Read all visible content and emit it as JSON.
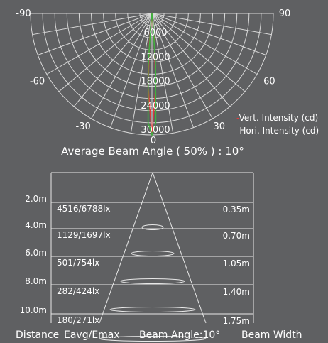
{
  "chart_data": [
    {
      "type": "polar",
      "angle_labels": [
        "-90",
        "-60",
        "-30",
        "0",
        "30",
        "60",
        "90"
      ],
      "angles": [
        -90,
        -60,
        -30,
        0,
        30,
        60,
        90
      ],
      "radial_ticks": [
        6000,
        12000,
        18000,
        24000,
        30000
      ],
      "radial_tick_labels": [
        "6000",
        "12000",
        "18000",
        "24000",
        "30000"
      ],
      "r_max": 30000,
      "legend_position": "bottom-right",
      "series": [
        {
          "name": "Vert. Intensity (cd)",
          "color": "#e03a3a",
          "points": [
            [
              -6,
              0
            ],
            [
              -5,
              6800
            ],
            [
              -3,
              18000
            ],
            [
              0,
              30000
            ],
            [
              3,
              18000
            ],
            [
              5,
              6800
            ],
            [
              6,
              0
            ]
          ]
        },
        {
          "name": "Hori. Intensity (cd)",
          "color": "#3fb03f",
          "points": [
            [
              -7,
              0
            ],
            [
              -6,
              2500
            ],
            [
              -4,
              13000
            ],
            [
              -2,
              27000
            ],
            [
              0,
              30000
            ],
            [
              2,
              27000
            ],
            [
              4,
              13000
            ],
            [
              6,
              2500
            ],
            [
              7,
              0
            ]
          ]
        }
      ],
      "caption": "Average Beam Angle ( 50% ) : 10°"
    },
    {
      "type": "table",
      "columns": [
        "Distance",
        "Eavg/Emax",
        "Beam Angle:10°",
        "Beam Width"
      ],
      "rows": [
        {
          "distance": "2.0m",
          "illuminance": "4516/6788lx",
          "width": "0.35m"
        },
        {
          "distance": "4.0m",
          "illuminance": "1129/1697lx",
          "width": "0.70m"
        },
        {
          "distance": "6.0m",
          "illuminance": "501/754lx",
          "width": "1.05m"
        },
        {
          "distance": "8.0m",
          "illuminance": "282/424lx",
          "width": "1.40m"
        },
        {
          "distance": "10.0m",
          "illuminance": "180/271lx",
          "width": "1.75m"
        }
      ]
    }
  ]
}
